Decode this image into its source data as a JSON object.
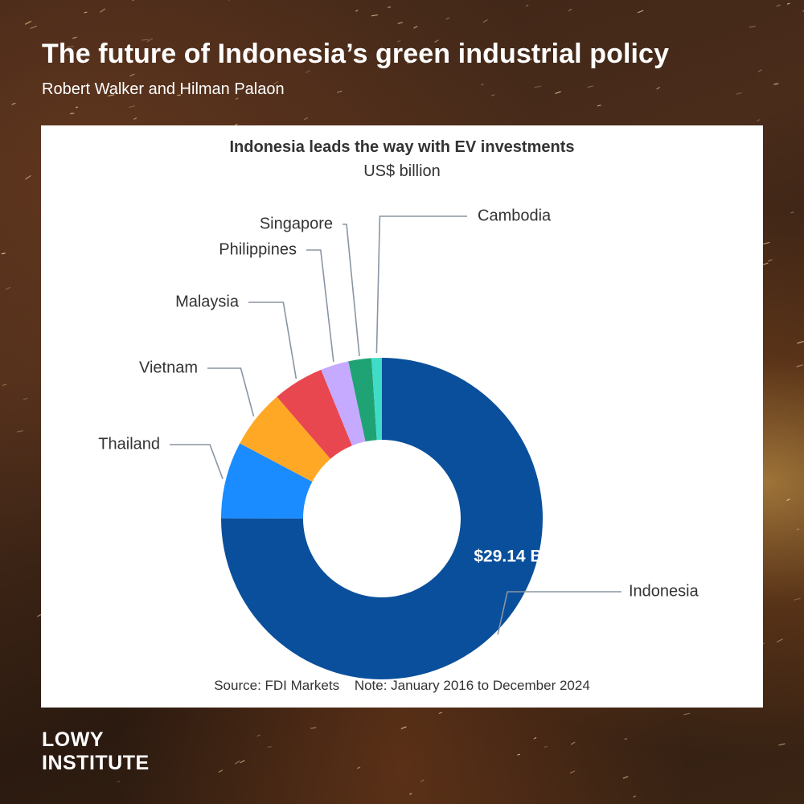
{
  "header": {
    "title": "The future of Indonesia’s green industrial policy",
    "authors": "Robert Walker and Hilman Palaon"
  },
  "chart_data": {
    "type": "pie",
    "title": "Indonesia leads the way with EV investments",
    "unit": "US$ billion",
    "donut": true,
    "categories": [
      "Indonesia",
      "Thailand",
      "Vietnam",
      "Malaysia",
      "Philippines",
      "Singapore",
      "Cambodia"
    ],
    "values": [
      29.14,
      3.0,
      2.3,
      2.0,
      1.1,
      0.9,
      0.4
    ],
    "colors": [
      "#0a4f9b",
      "#1a8cff",
      "#ffa826",
      "#e8474f",
      "#c5aaff",
      "#1fa374",
      "#3fdcc8"
    ],
    "data_labels": [
      "$29.14 B",
      "",
      "",
      "",
      "",
      "",
      ""
    ],
    "source": "Source: FDI Markets",
    "note": "Note: January 2016 to December 2024"
  },
  "branding": {
    "logo_line1": "LOWY",
    "logo_line2": "INSTITUTE"
  }
}
